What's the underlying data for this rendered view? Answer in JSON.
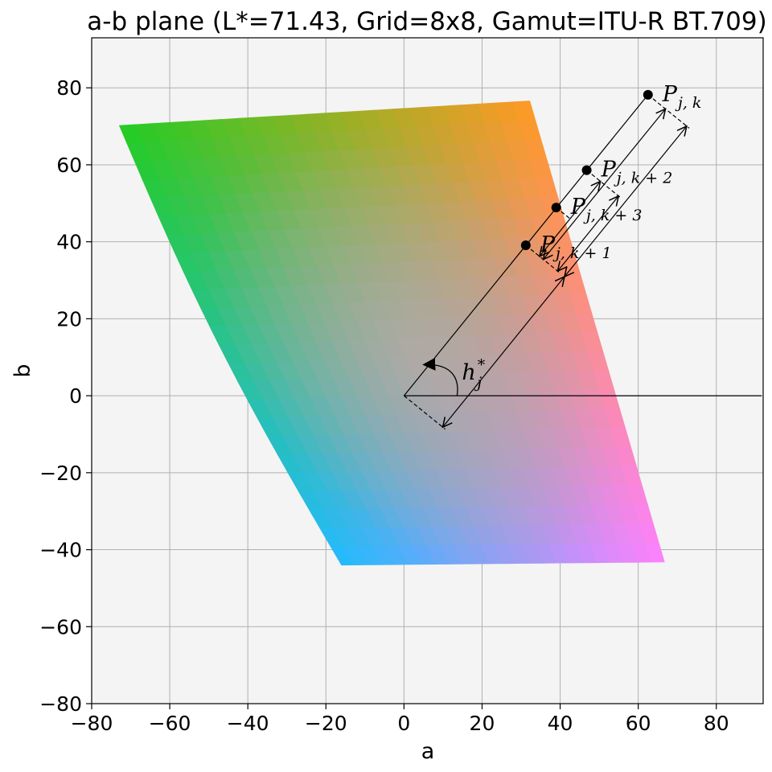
{
  "chart_data": {
    "type": "scatter",
    "title": "a-b plane (L*=71.43, Grid=8x8, Gamut=ITU-R BT.709)",
    "xlabel": "a",
    "ylabel": "b",
    "xlim": [
      -80,
      92
    ],
    "ylim": [
      -80,
      93
    ],
    "xticks": [
      -80,
      -60,
      -40,
      -20,
      0,
      20,
      40,
      60,
      80
    ],
    "yticks": [
      -80,
      -60,
      -40,
      -20,
      0,
      20,
      40,
      60,
      80
    ],
    "xtick_labels": [
      "−80",
      "−60",
      "−40",
      "−20",
      "0",
      "20",
      "40",
      "60",
      "80"
    ],
    "ytick_labels": [
      "−80",
      "−60",
      "−40",
      "−20",
      "0",
      "20",
      "40",
      "60",
      "80"
    ],
    "grid": true,
    "gamut_region": {
      "corners": [
        {
          "a": -72.9,
          "b": 70.2,
          "color": "#22cc22"
        },
        {
          "a": 32.2,
          "b": 76.6,
          "color": "#ff9922"
        },
        {
          "a": 66.7,
          "b": -43.2,
          "color": "#ff80ff"
        },
        {
          "a": -16.0,
          "b": -44.0,
          "color": "#22bbff"
        }
      ],
      "center_color": "#bbaaaa"
    },
    "points": [
      {
        "label": "P",
        "subscript": "j, k",
        "a": 62.5,
        "b": 78.2
      },
      {
        "label": "P",
        "subscript": "j, k + 2",
        "a": 46.8,
        "b": 58.6
      },
      {
        "label": "P",
        "subscript": "j, k + 3",
        "a": 39.0,
        "b": 48.9
      },
      {
        "label": "P",
        "subscript": "j, k + 1",
        "a": 31.2,
        "b": 39.1
      }
    ],
    "hue_annotation": {
      "label": "h",
      "superscript": "*",
      "subscript": "j",
      "angle_deg": 51.4
    }
  }
}
